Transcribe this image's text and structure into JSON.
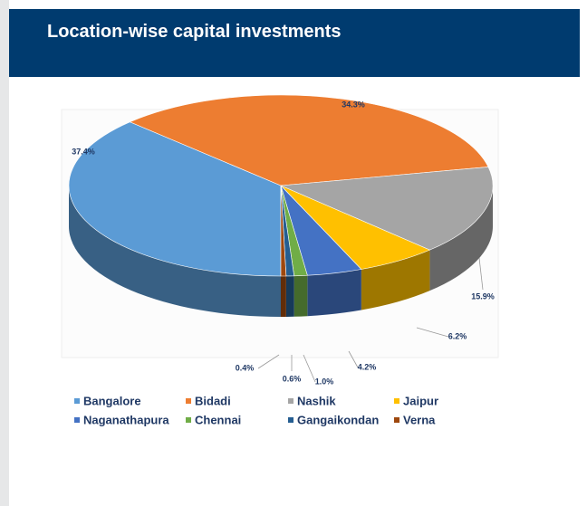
{
  "chart_data": {
    "type": "pie",
    "title": "Location-wise capital investments",
    "categories": [
      "Bangalore",
      "Bidadi",
      "Nashik",
      "Jaipur",
      "Naganathapura",
      "Chennai",
      "Gangaikondan",
      "Verna"
    ],
    "values": [
      37.4,
      34.3,
      15.9,
      6.2,
      4.2,
      1.0,
      0.6,
      0.4
    ],
    "value_labels": [
      "37.4%",
      "34.3%",
      "15.9%",
      "6.2%",
      "4.2%",
      "1.0%",
      "0.6%",
      "0.4%"
    ],
    "colors": [
      "#5b9bd5",
      "#ed7d31",
      "#a5a5a5",
      "#ffc000",
      "#4472c4",
      "#70ad47",
      "#255e91",
      "#9e480e"
    ]
  }
}
